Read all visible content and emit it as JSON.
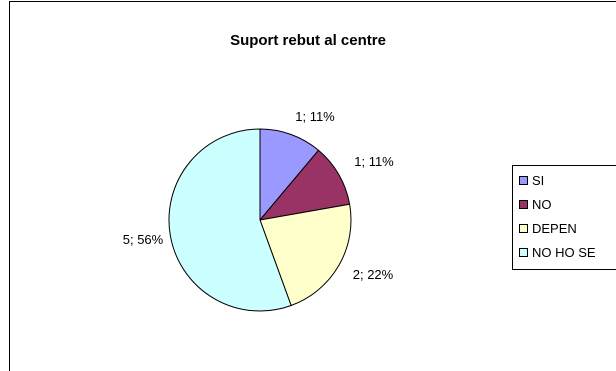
{
  "chart_data": {
    "type": "pie",
    "title": "Suport rebut al centre",
    "categories": [
      "SI",
      "NO",
      "DEPEN",
      "NO HO SE"
    ],
    "values": [
      1,
      1,
      2,
      5
    ],
    "percent_labels": [
      "1; 11%",
      "1; 11%",
      "2; 22%",
      "5; 56%"
    ],
    "colors": [
      "#9999ff",
      "#993366",
      "#ffffcc",
      "#ccffff"
    ],
    "legend_position": "right"
  }
}
